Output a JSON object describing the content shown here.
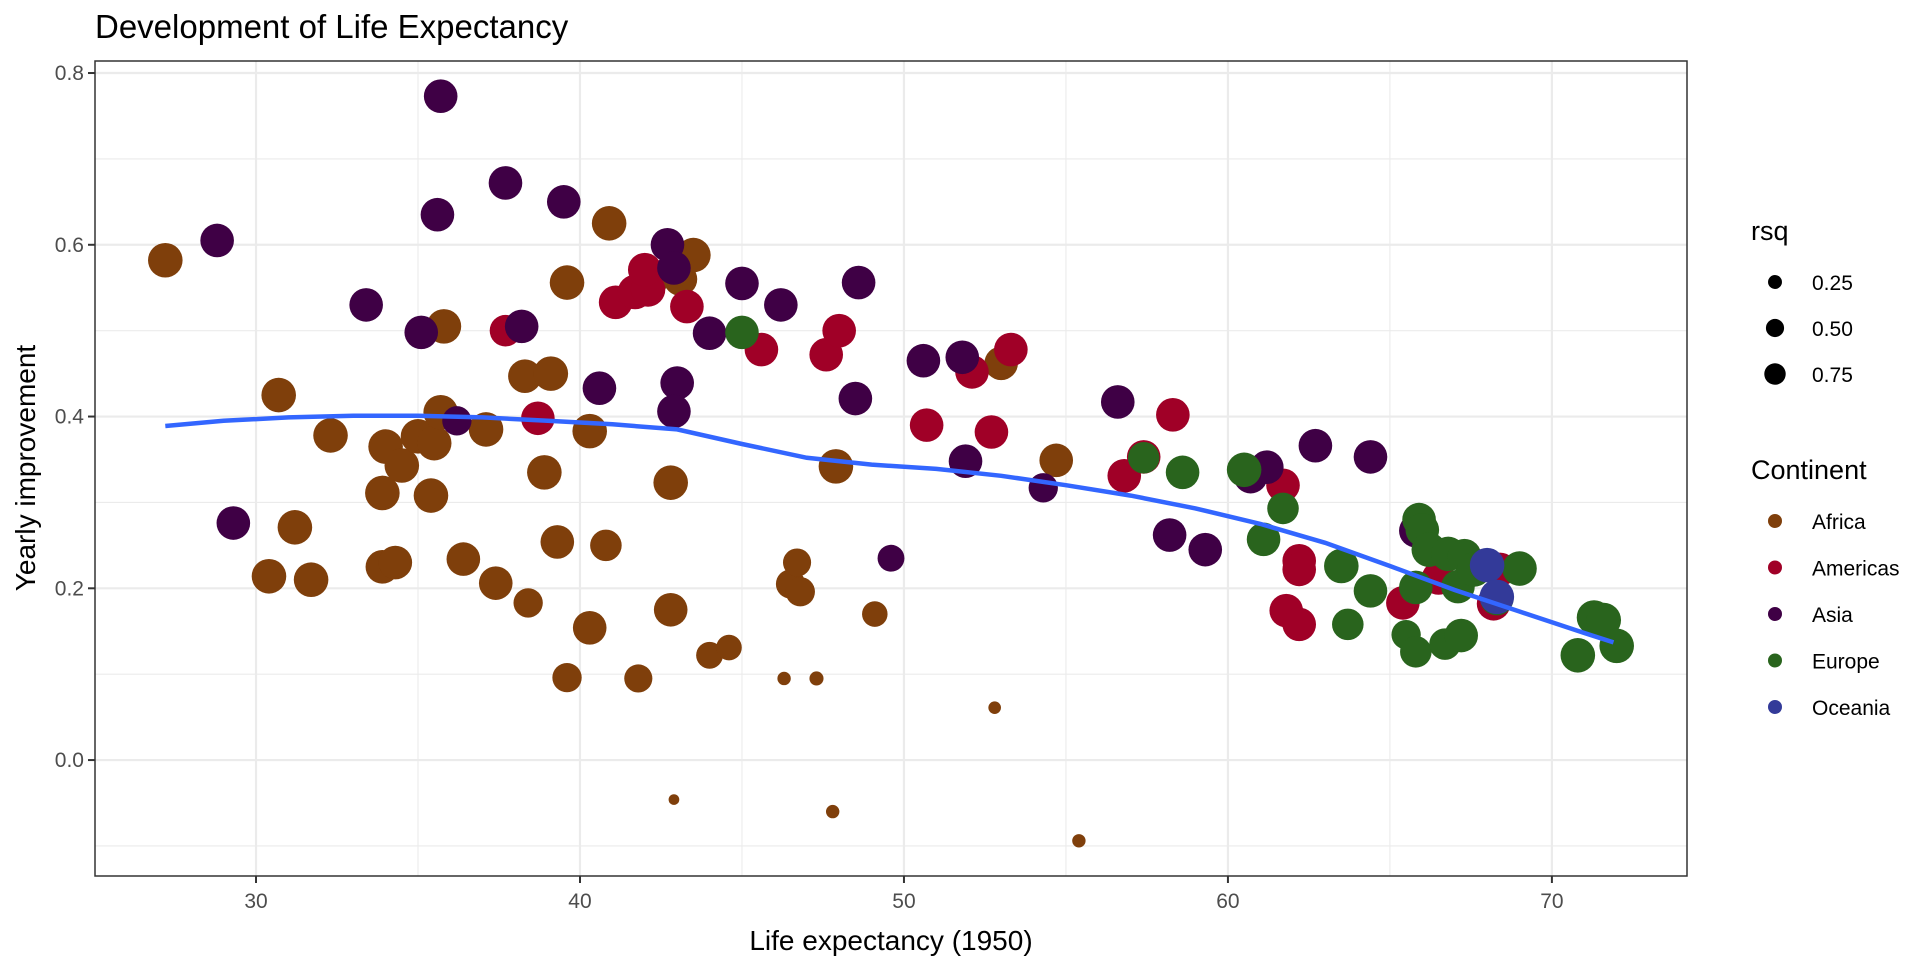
{
  "chart_data": {
    "type": "scatter",
    "title": "Development of Life Expectancy",
    "xlabel": "Life expectancy (1950)",
    "ylabel": "Yearly improvement",
    "xlim": [
      25.03,
      74.17
    ],
    "ylim": [
      -0.135,
      0.814
    ],
    "x_ticks": [
      30,
      40,
      50,
      60,
      70
    ],
    "x_tick_labels": [
      "30",
      "40",
      "50",
      "60",
      "70"
    ],
    "y_ticks": [
      0.0,
      0.2,
      0.4,
      0.6,
      0.8
    ],
    "y_tick_labels": [
      "0.0",
      "0.2",
      "0.4",
      "0.6",
      "0.8"
    ],
    "grid": true,
    "legend_position": "right",
    "size_legend": {
      "title": "rsq",
      "values": [
        0.25,
        0.5,
        0.75
      ],
      "labels": [
        "0.25",
        "0.50",
        "0.75"
      ]
    },
    "color_legend": {
      "title": "Continent",
      "entries": [
        {
          "name": "Africa",
          "color": "#7f3f0b"
        },
        {
          "name": "Americas",
          "color": "#a00027"
        },
        {
          "name": "Asia",
          "color": "#3f0045"
        },
        {
          "name": "Europe",
          "color": "#29641d"
        },
        {
          "name": "Oceania",
          "color": "#333a99"
        }
      ]
    },
    "smooth_line": {
      "color": "#3366ff",
      "x": [
        27.2,
        29,
        31,
        33,
        35,
        37,
        39,
        41,
        43,
        45,
        47,
        49,
        51,
        53,
        55,
        57,
        59,
        61,
        63,
        65,
        67,
        69,
        71,
        71.9
      ],
      "y": [
        0.389,
        0.395,
        0.399,
        0.401,
        0.401,
        0.399,
        0.395,
        0.391,
        0.385,
        0.368,
        0.352,
        0.344,
        0.339,
        0.331,
        0.32,
        0.308,
        0.293,
        0.275,
        0.253,
        0.226,
        0.198,
        0.173,
        0.148,
        0.137
      ]
    },
    "series": [
      {
        "name": "Africa",
        "points": [
          {
            "x": 27.2,
            "y": 0.582,
            "rsq": 0.75
          },
          {
            "x": 30.7,
            "y": 0.425,
            "rsq": 0.75
          },
          {
            "x": 32.3,
            "y": 0.378,
            "rsq": 0.75
          },
          {
            "x": 30.4,
            "y": 0.214,
            "rsq": 0.75
          },
          {
            "x": 31.2,
            "y": 0.271,
            "rsq": 0.75
          },
          {
            "x": 31.7,
            "y": 0.21,
            "rsq": 0.75
          },
          {
            "x": 33.9,
            "y": 0.311,
            "rsq": 0.75
          },
          {
            "x": 34.0,
            "y": 0.365,
            "rsq": 0.75
          },
          {
            "x": 34.5,
            "y": 0.343,
            "rsq": 0.75
          },
          {
            "x": 35.0,
            "y": 0.377,
            "rsq": 0.75
          },
          {
            "x": 35.5,
            "y": 0.369,
            "rsq": 0.75
          },
          {
            "x": 35.7,
            "y": 0.405,
            "rsq": 0.75
          },
          {
            "x": 35.8,
            "y": 0.505,
            "rsq": 0.75
          },
          {
            "x": 35.4,
            "y": 0.308,
            "rsq": 0.75
          },
          {
            "x": 33.9,
            "y": 0.225,
            "rsq": 0.7
          },
          {
            "x": 34.3,
            "y": 0.23,
            "rsq": 0.7
          },
          {
            "x": 36.4,
            "y": 0.234,
            "rsq": 0.7
          },
          {
            "x": 37.1,
            "y": 0.385,
            "rsq": 0.75
          },
          {
            "x": 37.4,
            "y": 0.206,
            "rsq": 0.7
          },
          {
            "x": 38.3,
            "y": 0.447,
            "rsq": 0.7
          },
          {
            "x": 38.4,
            "y": 0.183,
            "rsq": 0.5
          },
          {
            "x": 38.9,
            "y": 0.335,
            "rsq": 0.75
          },
          {
            "x": 39.1,
            "y": 0.45,
            "rsq": 0.75
          },
          {
            "x": 39.3,
            "y": 0.254,
            "rsq": 0.7
          },
          {
            "x": 39.6,
            "y": 0.556,
            "rsq": 0.75
          },
          {
            "x": 39.6,
            "y": 0.096,
            "rsq": 0.5
          },
          {
            "x": 40.3,
            "y": 0.383,
            "rsq": 0.75
          },
          {
            "x": 40.3,
            "y": 0.154,
            "rsq": 0.7
          },
          {
            "x": 40.8,
            "y": 0.25,
            "rsq": 0.6
          },
          {
            "x": 40.9,
            "y": 0.625,
            "rsq": 0.75
          },
          {
            "x": 41.8,
            "y": 0.095,
            "rsq": 0.45
          },
          {
            "x": 42.2,
            "y": 0.56,
            "rsq": 0.75
          },
          {
            "x": 42.8,
            "y": 0.323,
            "rsq": 0.75
          },
          {
            "x": 42.8,
            "y": 0.175,
            "rsq": 0.7
          },
          {
            "x": 42.9,
            "y": -0.046,
            "rsq": 0.02
          },
          {
            "x": 43.1,
            "y": 0.56,
            "rsq": 0.7
          },
          {
            "x": 43.5,
            "y": 0.588,
            "rsq": 0.75
          },
          {
            "x": 44.0,
            "y": 0.122,
            "rsq": 0.4
          },
          {
            "x": 44.6,
            "y": 0.131,
            "rsq": 0.35
          },
          {
            "x": 46.3,
            "y": 0.095,
            "rsq": 0.05
          },
          {
            "x": 46.5,
            "y": 0.205,
            "rsq": 0.5
          },
          {
            "x": 46.7,
            "y": 0.23,
            "rsq": 0.45
          },
          {
            "x": 46.8,
            "y": 0.196,
            "rsq": 0.5
          },
          {
            "x": 47.3,
            "y": 0.095,
            "rsq": 0.06
          },
          {
            "x": 47.8,
            "y": -0.06,
            "rsq": 0.05
          },
          {
            "x": 47.9,
            "y": 0.342,
            "rsq": 0.75
          },
          {
            "x": 49.1,
            "y": 0.17,
            "rsq": 0.35
          },
          {
            "x": 52.8,
            "y": 0.061,
            "rsq": 0.04
          },
          {
            "x": 53.0,
            "y": 0.462,
            "rsq": 0.7
          },
          {
            "x": 54.7,
            "y": 0.349,
            "rsq": 0.7
          },
          {
            "x": 55.4,
            "y": -0.094,
            "rsq": 0.05
          }
        ]
      },
      {
        "name": "Americas",
        "points": [
          {
            "x": 37.7,
            "y": 0.5,
            "rsq": 0.6
          },
          {
            "x": 38.7,
            "y": 0.398,
            "rsq": 0.7
          },
          {
            "x": 41.1,
            "y": 0.533,
            "rsq": 0.7
          },
          {
            "x": 41.7,
            "y": 0.545,
            "rsq": 0.75
          },
          {
            "x": 42.1,
            "y": 0.548,
            "rsq": 0.75
          },
          {
            "x": 42.0,
            "y": 0.571,
            "rsq": 0.7
          },
          {
            "x": 43.3,
            "y": 0.528,
            "rsq": 0.7
          },
          {
            "x": 45.6,
            "y": 0.478,
            "rsq": 0.7
          },
          {
            "x": 47.6,
            "y": 0.472,
            "rsq": 0.7
          },
          {
            "x": 48.0,
            "y": 0.5,
            "rsq": 0.7
          },
          {
            "x": 50.7,
            "y": 0.39,
            "rsq": 0.7
          },
          {
            "x": 52.1,
            "y": 0.452,
            "rsq": 0.7
          },
          {
            "x": 52.7,
            "y": 0.382,
            "rsq": 0.7
          },
          {
            "x": 53.3,
            "y": 0.478,
            "rsq": 0.7
          },
          {
            "x": 56.8,
            "y": 0.331,
            "rsq": 0.7
          },
          {
            "x": 57.4,
            "y": 0.353,
            "rsq": 0.7
          },
          {
            "x": 58.3,
            "y": 0.402,
            "rsq": 0.7
          },
          {
            "x": 61.7,
            "y": 0.32,
            "rsq": 0.7
          },
          {
            "x": 61.8,
            "y": 0.174,
            "rsq": 0.7
          },
          {
            "x": 62.2,
            "y": 0.158,
            "rsq": 0.7
          },
          {
            "x": 62.2,
            "y": 0.232,
            "rsq": 0.7
          },
          {
            "x": 62.2,
            "y": 0.222,
            "rsq": 0.7
          },
          {
            "x": 65.4,
            "y": 0.183,
            "rsq": 0.7
          },
          {
            "x": 66.5,
            "y": 0.212,
            "rsq": 0.7
          },
          {
            "x": 68.2,
            "y": 0.182,
            "rsq": 0.7
          },
          {
            "x": 68.4,
            "y": 0.222,
            "rsq": 0.7
          }
        ]
      },
      {
        "name": "Asia",
        "points": [
          {
            "x": 28.8,
            "y": 0.605,
            "rsq": 0.7
          },
          {
            "x": 29.3,
            "y": 0.276,
            "rsq": 0.7
          },
          {
            "x": 33.4,
            "y": 0.53,
            "rsq": 0.7
          },
          {
            "x": 35.1,
            "y": 0.498,
            "rsq": 0.7
          },
          {
            "x": 35.6,
            "y": 0.635,
            "rsq": 0.7
          },
          {
            "x": 35.7,
            "y": 0.773,
            "rsq": 0.7
          },
          {
            "x": 36.2,
            "y": 0.395,
            "rsq": 0.5
          },
          {
            "x": 37.7,
            "y": 0.672,
            "rsq": 0.7
          },
          {
            "x": 38.2,
            "y": 0.505,
            "rsq": 0.7
          },
          {
            "x": 39.5,
            "y": 0.65,
            "rsq": 0.7
          },
          {
            "x": 40.6,
            "y": 0.433,
            "rsq": 0.7
          },
          {
            "x": 42.7,
            "y": 0.6,
            "rsq": 0.7
          },
          {
            "x": 42.9,
            "y": 0.573,
            "rsq": 0.7
          },
          {
            "x": 43.0,
            "y": 0.439,
            "rsq": 0.7
          },
          {
            "x": 42.9,
            "y": 0.406,
            "rsq": 0.7
          },
          {
            "x": 44.0,
            "y": 0.497,
            "rsq": 0.7
          },
          {
            "x": 45.0,
            "y": 0.555,
            "rsq": 0.7
          },
          {
            "x": 46.2,
            "y": 0.53,
            "rsq": 0.7
          },
          {
            "x": 48.5,
            "y": 0.421,
            "rsq": 0.7
          },
          {
            "x": 48.6,
            "y": 0.556,
            "rsq": 0.7
          },
          {
            "x": 49.6,
            "y": 0.235,
            "rsq": 0.4
          },
          {
            "x": 50.6,
            "y": 0.465,
            "rsq": 0.7
          },
          {
            "x": 51.8,
            "y": 0.469,
            "rsq": 0.7
          },
          {
            "x": 51.9,
            "y": 0.348,
            "rsq": 0.7
          },
          {
            "x": 54.3,
            "y": 0.317,
            "rsq": 0.5
          },
          {
            "x": 56.6,
            "y": 0.417,
            "rsq": 0.7
          },
          {
            "x": 58.2,
            "y": 0.262,
            "rsq": 0.7
          },
          {
            "x": 59.3,
            "y": 0.245,
            "rsq": 0.7
          },
          {
            "x": 60.7,
            "y": 0.33,
            "rsq": 0.7
          },
          {
            "x": 61.2,
            "y": 0.341,
            "rsq": 0.7
          },
          {
            "x": 62.7,
            "y": 0.366,
            "rsq": 0.7
          },
          {
            "x": 64.4,
            "y": 0.353,
            "rsq": 0.7
          },
          {
            "x": 65.8,
            "y": 0.267,
            "rsq": 0.7
          }
        ]
      },
      {
        "name": "Europe",
        "points": [
          {
            "x": 45.0,
            "y": 0.498,
            "rsq": 0.7
          },
          {
            "x": 57.4,
            "y": 0.352,
            "rsq": 0.6
          },
          {
            "x": 58.6,
            "y": 0.335,
            "rsq": 0.7
          },
          {
            "x": 60.5,
            "y": 0.338,
            "rsq": 0.75
          },
          {
            "x": 61.1,
            "y": 0.257,
            "rsq": 0.7
          },
          {
            "x": 61.7,
            "y": 0.293,
            "rsq": 0.6
          },
          {
            "x": 63.5,
            "y": 0.226,
            "rsq": 0.75
          },
          {
            "x": 63.7,
            "y": 0.158,
            "rsq": 0.6
          },
          {
            "x": 64.4,
            "y": 0.197,
            "rsq": 0.7
          },
          {
            "x": 65.5,
            "y": 0.146,
            "rsq": 0.5
          },
          {
            "x": 65.8,
            "y": 0.126,
            "rsq": 0.6
          },
          {
            "x": 65.8,
            "y": 0.201,
            "rsq": 0.7
          },
          {
            "x": 65.9,
            "y": 0.28,
            "rsq": 0.7
          },
          {
            "x": 66.0,
            "y": 0.268,
            "rsq": 0.7
          },
          {
            "x": 66.2,
            "y": 0.245,
            "rsq": 0.75
          },
          {
            "x": 66.7,
            "y": 0.135,
            "rsq": 0.6
          },
          {
            "x": 66.8,
            "y": 0.24,
            "rsq": 0.75
          },
          {
            "x": 67.1,
            "y": 0.202,
            "rsq": 0.7
          },
          {
            "x": 67.2,
            "y": 0.145,
            "rsq": 0.7
          },
          {
            "x": 67.3,
            "y": 0.238,
            "rsq": 0.7
          },
          {
            "x": 67.6,
            "y": 0.222,
            "rsq": 0.75
          },
          {
            "x": 68.3,
            "y": 0.188,
            "rsq": 0.7
          },
          {
            "x": 69.0,
            "y": 0.223,
            "rsq": 0.75
          },
          {
            "x": 70.8,
            "y": 0.122,
            "rsq": 0.75
          },
          {
            "x": 71.3,
            "y": 0.166,
            "rsq": 0.75
          },
          {
            "x": 71.6,
            "y": 0.163,
            "rsq": 0.75
          },
          {
            "x": 72.0,
            "y": 0.133,
            "rsq": 0.75
          }
        ]
      },
      {
        "name": "Oceania",
        "points": [
          {
            "x": 68.0,
            "y": 0.227,
            "rsq": 0.75
          },
          {
            "x": 68.3,
            "y": 0.19,
            "rsq": 0.75
          }
        ]
      }
    ]
  }
}
